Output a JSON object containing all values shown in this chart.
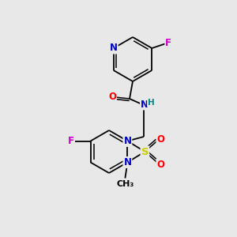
{
  "background_color": "#e8e8e8",
  "atom_colors": {
    "C": "#000000",
    "N": "#0000cc",
    "O": "#ff0000",
    "F": "#cc00cc",
    "S": "#cccc00",
    "H": "#008888"
  },
  "bond_color": "#000000",
  "figsize": [
    3.0,
    3.0
  ],
  "dpi": 100
}
